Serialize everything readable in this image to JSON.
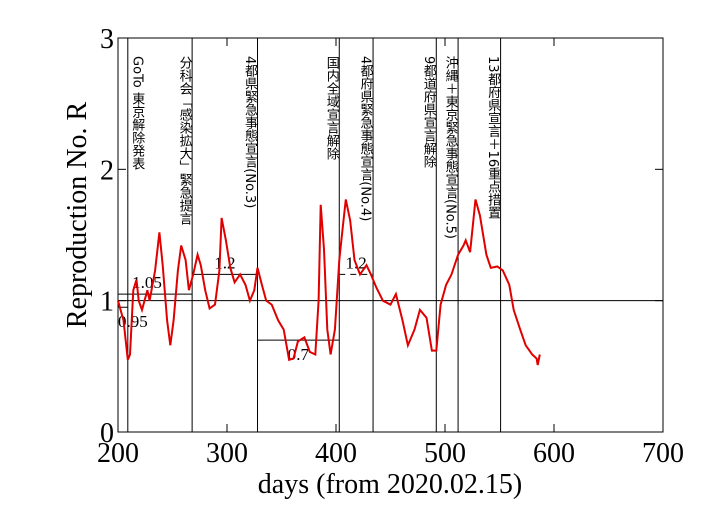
{
  "chart_data": {
    "type": "line",
    "xlabel": "days   (from 2020.02.15)",
    "ylabel": "Reproduction No.  R",
    "xlim": [
      200,
      700
    ],
    "ylim": [
      0,
      3
    ],
    "xticks": [
      200,
      300,
      400,
      500,
      600,
      700
    ],
    "yticks": [
      0,
      1,
      2,
      3
    ],
    "reference_line": 1,
    "series": [
      {
        "color": "#e00000",
        "x": [
          200,
          205,
          209,
          211,
          214,
          217,
          219,
          222,
          227,
          229,
          234,
          238,
          241,
          245,
          248,
          251,
          255,
          258,
          262,
          265,
          269,
          273,
          276,
          280,
          284,
          289,
          293,
          295,
          299,
          303,
          307,
          312,
          317,
          321,
          325,
          328,
          332,
          336,
          341,
          347,
          352,
          357,
          361,
          365,
          371,
          376,
          381,
          384,
          386,
          389,
          392,
          395,
          399,
          403,
          406,
          409,
          413,
          417,
          422,
          428,
          432,
          437,
          443,
          450,
          455,
          461,
          466,
          472,
          477,
          483,
          488,
          492,
          496,
          501,
          506,
          512,
          517,
          519,
          523,
          528,
          532,
          538,
          542,
          548,
          553,
          559,
          563,
          569,
          574,
          580,
          584,
          585,
          587
        ],
        "values": [
          1.0,
          0.85,
          0.55,
          0.59,
          1.08,
          1.16,
          1.0,
          0.93,
          1.08,
          1.0,
          1.23,
          1.52,
          1.27,
          0.85,
          0.66,
          0.85,
          1.23,
          1.42,
          1.31,
          1.08,
          1.2,
          1.35,
          1.27,
          1.08,
          0.94,
          0.97,
          1.23,
          1.63,
          1.46,
          1.25,
          1.14,
          1.2,
          1.12,
          1.0,
          1.08,
          1.25,
          1.12,
          1.0,
          0.97,
          0.85,
          0.78,
          0.55,
          0.56,
          0.69,
          0.72,
          0.61,
          0.59,
          1.0,
          1.73,
          1.39,
          0.78,
          0.59,
          0.78,
          1.31,
          1.54,
          1.77,
          1.61,
          1.31,
          1.2,
          1.27,
          1.2,
          1.1,
          1.0,
          0.97,
          1.05,
          0.85,
          0.66,
          0.78,
          0.93,
          0.87,
          0.62,
          0.62,
          0.97,
          1.12,
          1.2,
          1.35,
          1.42,
          1.46,
          1.37,
          1.77,
          1.65,
          1.35,
          1.25,
          1.26,
          1.23,
          1.12,
          0.93,
          0.78,
          0.66,
          0.59,
          0.56,
          0.51,
          0.59
        ]
      }
    ],
    "events": [
      {
        "day": 209,
        "label": "GoTo 東京解除発表"
      },
      {
        "day": 268,
        "label": "分科会「感染拡大」緊急提言"
      },
      {
        "day": 328,
        "label": "4都県緊急事態宣言(No.3)"
      },
      {
        "day": 403,
        "label": "国内全域宣言解除"
      },
      {
        "day": 434,
        "label": "4都府県緊急事態宣言(No.4)"
      },
      {
        "day": 492,
        "label": "9都道府県宣言解除"
      },
      {
        "day": 512,
        "label": "沖縄＋東京緊急事態宣言(No.5)"
      },
      {
        "day": 551,
        "label": "13都府県宣言＋16重点措置"
      }
    ],
    "levels": [
      {
        "value": 0.95,
        "from": 200,
        "to": 209,
        "label": "0.95"
      },
      {
        "value": 1.05,
        "from": 200,
        "to": 268,
        "label": "1.05"
      },
      {
        "value": 1.2,
        "from": 268,
        "to": 328,
        "label": "1.2"
      },
      {
        "value": 0.7,
        "from": 328,
        "to": 403,
        "label": "0.7"
      },
      {
        "value": 1.2,
        "from": 403,
        "to": 434,
        "label": "1.2",
        "dashed": true
      }
    ]
  }
}
